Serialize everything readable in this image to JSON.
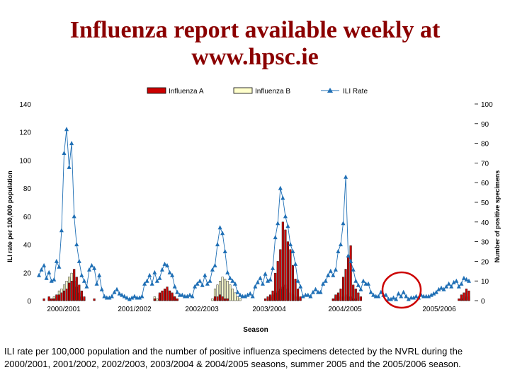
{
  "slide": {
    "title_line1": "Influenza report available weekly at",
    "title_line2": "www.hpsc.ie",
    "caption": "ILI rate per 100,000 population and the number of positive influenza specimens detected by the NVRL during the 2000/2001, 2001/2002, 2002/2003, 2003/2004 & 2004/2005 seasons, summer 2005 and the 2005/2006 season."
  },
  "colors": {
    "title": "#8b0000",
    "influenza_a": "#cc0000",
    "influenza_b": "#ffffcc",
    "ili_rate": "#1f6fb5",
    "highlight_circle": "#cc0000"
  },
  "chart_data": {
    "type": "bar+line",
    "xlabel": "Season",
    "ylabel_left": "ILI rate per 100,000 population",
    "ylabel_right": "Number of positive specimens",
    "ylim_left": [
      0,
      140
    ],
    "yticks_left": [
      "0",
      "20",
      "40",
      "60",
      "80",
      "100",
      "120",
      "140"
    ],
    "ylim_right": [
      0,
      100
    ],
    "yticks_right": [
      "0",
      "10",
      "20",
      "30",
      "40",
      "50",
      "60",
      "70",
      "80",
      "90",
      "100"
    ],
    "season_labels": [
      "2000/2001",
      "2001/2002",
      "2002/2003",
      "2003/2004",
      "2004/2005",
      "2005/2006"
    ],
    "legend": [
      "Influenza A",
      "Influenza B",
      "ILI Rate"
    ],
    "legend_position": "top",
    "highlight": "summer 2005 circled",
    "ili_rate": [
      18,
      22,
      25,
      16,
      20,
      14,
      15,
      28,
      24,
      50,
      105,
      122,
      95,
      112,
      60,
      40,
      28,
      18,
      14,
      10,
      22,
      25,
      23,
      12,
      18,
      8,
      3,
      2,
      2,
      3,
      6,
      8,
      5,
      4,
      3,
      2,
      1,
      2,
      3,
      2,
      2,
      3,
      12,
      14,
      18,
      12,
      20,
      14,
      16,
      22,
      26,
      25,
      20,
      18,
      10,
      6,
      4,
      4,
      3,
      3,
      4,
      3,
      10,
      12,
      14,
      11,
      18,
      12,
      14,
      22,
      25,
      40,
      52,
      48,
      35,
      20,
      16,
      14,
      12,
      6,
      4,
      3,
      3,
      4,
      5,
      3,
      10,
      13,
      16,
      12,
      19,
      14,
      15,
      23,
      45,
      55,
      80,
      73,
      60,
      53,
      40,
      35,
      26,
      14,
      10,
      3,
      4,
      4,
      3,
      6,
      8,
      6,
      6,
      12,
      14,
      18,
      21,
      18,
      22,
      35,
      40,
      55,
      88,
      32,
      28,
      22,
      14,
      11,
      8,
      14,
      12,
      12,
      6,
      4,
      3,
      3,
      6,
      4,
      4,
      1,
      1,
      2,
      1,
      5,
      3,
      6,
      3,
      1,
      2,
      2,
      3,
      2,
      4,
      3,
      3,
      3,
      4,
      5,
      6,
      8,
      9,
      8,
      10,
      12,
      10,
      13,
      14,
      10,
      12,
      16,
      15,
      14
    ],
    "influenza_a": [
      0,
      0,
      1,
      0,
      2,
      1,
      1,
      3,
      3,
      4,
      5,
      6,
      9,
      10,
      16,
      12,
      8,
      5,
      2,
      0,
      0,
      0,
      1,
      0,
      0,
      0,
      0,
      0,
      0,
      0,
      0,
      0,
      0,
      0,
      0,
      0,
      0,
      0,
      0,
      0,
      0,
      0,
      0,
      0,
      0,
      0,
      1,
      0,
      4,
      5,
      6,
      7,
      5,
      4,
      2,
      1,
      0,
      0,
      0,
      0,
      0,
      0,
      0,
      0,
      0,
      0,
      0,
      0,
      0,
      0,
      2,
      2,
      3,
      2,
      1,
      1,
      0,
      0,
      0,
      0,
      0,
      0,
      0,
      0,
      0,
      0,
      0,
      0,
      0,
      0,
      1,
      2,
      3,
      5,
      14,
      20,
      26,
      40,
      36,
      30,
      26,
      18,
      11,
      6,
      2,
      0,
      0,
      0,
      0,
      0,
      0,
      0,
      0,
      0,
      0,
      0,
      0,
      1,
      3,
      4,
      6,
      12,
      16,
      22,
      28,
      8,
      6,
      4,
      2,
      0,
      0,
      0,
      0,
      0,
      0,
      0,
      0,
      0,
      0,
      0,
      0,
      0,
      0,
      0,
      0,
      0,
      0,
      0,
      0,
      0,
      0,
      0,
      0,
      0,
      0,
      0,
      0,
      0,
      0,
      0,
      0,
      0,
      0,
      0,
      0,
      0,
      0,
      1,
      3,
      4,
      6,
      5
    ],
    "influenza_b": [
      0,
      0,
      0,
      0,
      1,
      1,
      2,
      2,
      5,
      6,
      8,
      10,
      12,
      14,
      10,
      7,
      4,
      2,
      1,
      0,
      0,
      0,
      0,
      0,
      0,
      0,
      0,
      0,
      0,
      0,
      0,
      0,
      0,
      0,
      0,
      0,
      0,
      0,
      0,
      0,
      0,
      0,
      0,
      0,
      0,
      0,
      2,
      1,
      3,
      4,
      5,
      6,
      5,
      3,
      2,
      1,
      0,
      0,
      0,
      0,
      0,
      0,
      0,
      0,
      0,
      0,
      0,
      0,
      0,
      1,
      6,
      8,
      10,
      12,
      11,
      10,
      8,
      6,
      4,
      2,
      1,
      0,
      0,
      0,
      0,
      0,
      0,
      0,
      0,
      0,
      0,
      1,
      2,
      3,
      4,
      5,
      6,
      7,
      8,
      6,
      4,
      3,
      2,
      1,
      0,
      0,
      0,
      0,
      0,
      0,
      0,
      0,
      0,
      0,
      0,
      0,
      0,
      1,
      2,
      3,
      2,
      2,
      3,
      2,
      2,
      1,
      1,
      0,
      0,
      0,
      0,
      0,
      0,
      0,
      0,
      0,
      0,
      0,
      0,
      0,
      0,
      0,
      0,
      0,
      0,
      0,
      0,
      0,
      0,
      0,
      0,
      0,
      0,
      0,
      0,
      0,
      0,
      0,
      0,
      0,
      0,
      0,
      0,
      0,
      0,
      0,
      0,
      0,
      1,
      1,
      2,
      2
    ]
  }
}
